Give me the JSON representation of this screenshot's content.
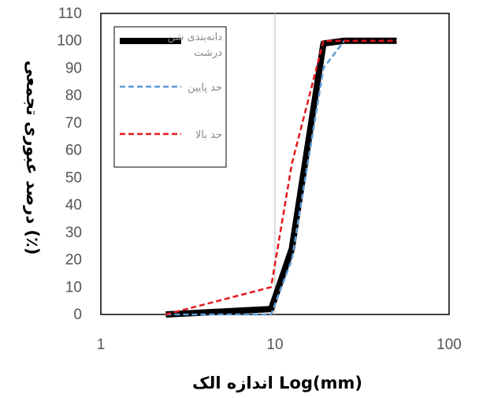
{
  "chart_data": {
    "type": "line",
    "xscale": "log",
    "xlim": [
      1,
      100
    ],
    "ylim": [
      0,
      110
    ],
    "xticks": [
      "1",
      "10",
      "100"
    ],
    "yticks": [
      "0",
      "10",
      "20",
      "30",
      "40",
      "50",
      "60",
      "70",
      "80",
      "90",
      "100",
      "110"
    ],
    "xlabel": "اندازه الک Log(mm)",
    "ylabel": "درصد عبوری تجمعی (٪)",
    "grid": false,
    "legend": "top-left",
    "series": [
      {
        "name": "دانه‌بندی شن درشت",
        "color": "#000000",
        "style": "solid",
        "x": [
          2.36,
          9.5,
          12.5,
          19,
          25,
          50
        ],
        "y": [
          0,
          2,
          24,
          99,
          100,
          100
        ]
      },
      {
        "name": "حد پایین",
        "color": "#5b9bd5",
        "style": "dashed",
        "x": [
          2.36,
          9.5,
          12.5,
          19,
          25
        ],
        "y": [
          0,
          0,
          20,
          90,
          100
        ]
      },
      {
        "name": "حد بالا",
        "color": "#e3171e",
        "style": "dashed",
        "x": [
          2.36,
          9.5,
          12.5,
          19,
          25,
          50
        ],
        "y": [
          0,
          10,
          55,
          100,
          100,
          100
        ]
      }
    ]
  }
}
